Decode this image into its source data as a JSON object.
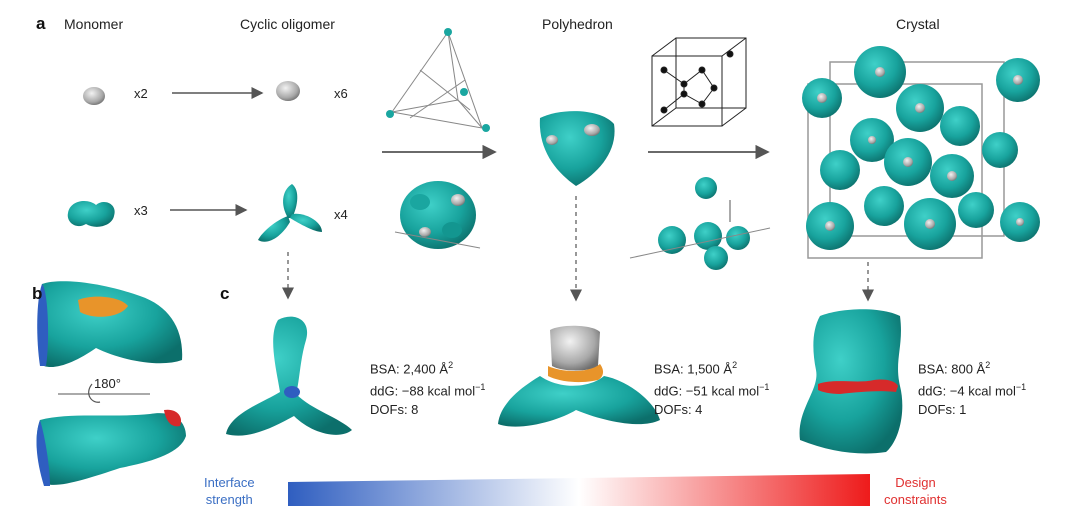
{
  "panels": {
    "a": "a",
    "b": "b",
    "c": "c"
  },
  "headers": {
    "monomer": "Monomer",
    "cyclic_oligomer": "Cyclic oligomer",
    "polyhedron": "Polyhedron",
    "crystal": "Crystal"
  },
  "multipliers": {
    "m1": "x2",
    "m2": "x6",
    "m3": "x3",
    "m4": "x4"
  },
  "rotation_label": "180°",
  "stats": [
    {
      "bsa": "BSA: 2,400 Å",
      "bsa_sup": "2",
      "ddg": "ddG: −88 kcal mol",
      "ddg_sup": "−1",
      "dofs": "DOFs: 8"
    },
    {
      "bsa": "BSA: 1,500 Å",
      "bsa_sup": "2",
      "ddg": "ddG: −51 kcal mol",
      "ddg_sup": "−1",
      "dofs": "DOFs: 4"
    },
    {
      "bsa": "BSA: 800 Å",
      "bsa_sup": "2",
      "ddg": "ddG: −4 kcal mol",
      "ddg_sup": "−1",
      "dofs": "DOFs: 1"
    }
  ],
  "gradient": {
    "left_line1": "Interface",
    "left_line2": "strength",
    "right_line1": "Design",
    "right_line2": "constraints",
    "left_color": "#2f5ec0",
    "right_color": "#ee1b1b"
  },
  "colors": {
    "protein": "#1aa6a0",
    "protein_dark": "#0f7f7a",
    "grey": "#c8c8c8",
    "arrow": "#555555",
    "orange": "#e8942a",
    "red": "#d62a2a",
    "blue": "#2f5ec0"
  }
}
